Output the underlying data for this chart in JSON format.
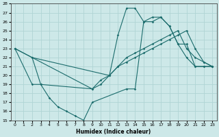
{
  "xlabel": "Humidex (Indice chaleur)",
  "xlim": [
    -0.5,
    23.5
  ],
  "ylim": [
    15,
    28
  ],
  "xticks": [
    0,
    1,
    2,
    3,
    4,
    5,
    6,
    7,
    8,
    9,
    10,
    11,
    12,
    13,
    14,
    15,
    16,
    17,
    18,
    19,
    20,
    21,
    22,
    23
  ],
  "yticks": [
    15,
    16,
    17,
    18,
    19,
    20,
    21,
    22,
    23,
    24,
    25,
    26,
    27,
    28
  ],
  "bg_color": "#cde8e8",
  "grid_color": "#b0d4d4",
  "line_color": "#1a6b6b",
  "lines": [
    {
      "x": [
        0,
        2,
        3,
        4,
        5,
        6,
        7,
        8,
        9,
        13,
        14,
        15,
        16,
        17,
        18,
        19,
        20,
        21,
        22,
        23
      ],
      "y": [
        23,
        19,
        19,
        17.5,
        16.5,
        16,
        15.5,
        15,
        17,
        18.5,
        18.5,
        26,
        26.5,
        26.5,
        25.5,
        23.5,
        22,
        21,
        21,
        21
      ]
    },
    {
      "x": [
        0,
        9,
        10,
        11,
        12,
        13,
        14,
        15,
        16,
        17,
        18,
        19,
        20,
        21,
        22,
        23
      ],
      "y": [
        23,
        18.5,
        19,
        20,
        21,
        21.5,
        22,
        22.5,
        23,
        23.5,
        24,
        24.5,
        25,
        23,
        21.5,
        21
      ]
    },
    {
      "x": [
        2,
        3,
        9,
        10,
        11,
        12,
        13,
        14,
        15,
        16,
        17,
        18,
        19,
        20,
        21,
        22,
        23
      ],
      "y": [
        22,
        19,
        18.5,
        19.5,
        20,
        21,
        22,
        22.5,
        23,
        23.5,
        24,
        24.5,
        25,
        23,
        22,
        21.5,
        21
      ]
    },
    {
      "x": [
        0,
        2,
        11,
        12,
        13,
        14,
        15,
        16,
        17,
        18,
        19,
        20,
        21,
        22,
        23
      ],
      "y": [
        23,
        22,
        20,
        24.5,
        27.5,
        27.5,
        26,
        26,
        26.5,
        25.5,
        23.5,
        23.5,
        21,
        21,
        21
      ]
    }
  ]
}
